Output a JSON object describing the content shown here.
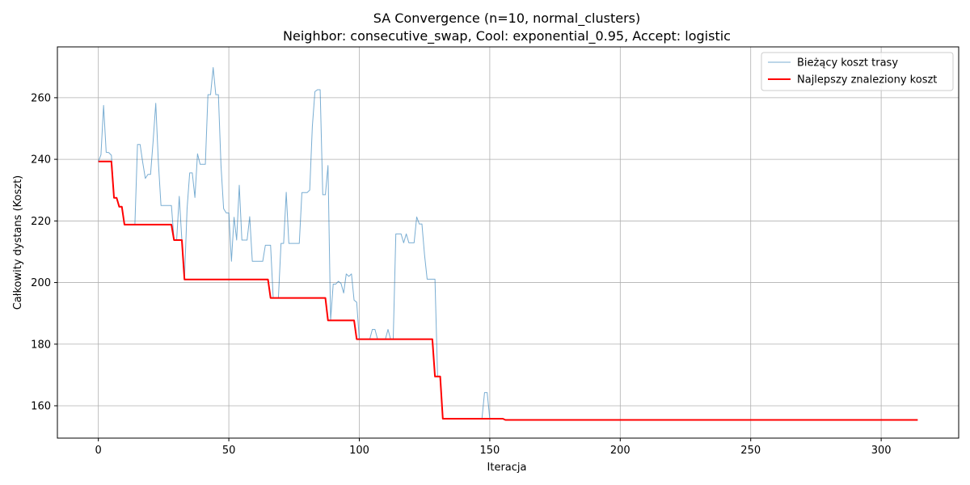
{
  "chart_data": {
    "type": "line",
    "title": "SA Convergence (n=10, normal_clusters)",
    "subtitle": "Neighbor: consecutive_swap, Cool: exponential_0.95, Accept: logistic",
    "xlabel": "Iteracja",
    "ylabel": "Całkowity dystans (Koszt)",
    "xlim": [
      -15.7,
      329.7
    ],
    "ylim": [
      149.5,
      276.5
    ],
    "xticks": [
      0,
      50,
      100,
      150,
      200,
      250,
      300
    ],
    "yticks": [
      160,
      180,
      200,
      220,
      240,
      260
    ],
    "grid": true,
    "legend_position": "top-right",
    "series": [
      {
        "name": "Bieżący koszt trasy",
        "color": "#1f77b4",
        "opacity": 0.6,
        "line_width": 1,
        "points": [
          [
            0,
            239.3
          ],
          [
            1,
            241.5
          ],
          [
            2,
            257.5
          ],
          [
            3,
            242.3
          ],
          [
            4,
            242.2
          ],
          [
            5,
            241.3
          ],
          [
            6,
            227.5
          ],
          [
            7,
            227.5
          ],
          [
            8,
            224.6
          ],
          [
            9,
            224.6
          ],
          [
            10,
            218.8
          ],
          [
            11,
            218.8
          ],
          [
            12,
            218.8
          ],
          [
            13,
            218.8
          ],
          [
            14,
            218.8
          ],
          [
            15,
            244.8
          ],
          [
            16,
            244.8
          ],
          [
            17,
            239.0
          ],
          [
            18,
            233.8
          ],
          [
            19,
            235.1
          ],
          [
            20,
            235.1
          ],
          [
            21,
            246.0
          ],
          [
            22,
            258.2
          ],
          [
            23,
            239.0
          ],
          [
            24,
            225.0
          ],
          [
            25,
            225.0
          ],
          [
            26,
            225.0
          ],
          [
            27,
            225.0
          ],
          [
            28,
            225.0
          ],
          [
            29,
            213.8
          ],
          [
            30,
            213.8
          ],
          [
            31,
            228.0
          ],
          [
            32,
            213.8
          ],
          [
            33,
            201.0
          ],
          [
            34,
            224.0
          ],
          [
            35,
            235.6
          ],
          [
            36,
            235.6
          ],
          [
            37,
            227.6
          ],
          [
            38,
            241.8
          ],
          [
            39,
            238.4
          ],
          [
            40,
            238.4
          ],
          [
            41,
            238.4
          ],
          [
            42,
            261.0
          ],
          [
            43,
            261.0
          ],
          [
            44,
            269.8
          ],
          [
            45,
            261.0
          ],
          [
            46,
            261.0
          ],
          [
            47,
            238.0
          ],
          [
            48,
            224.0
          ],
          [
            49,
            222.6
          ],
          [
            50,
            222.6
          ],
          [
            51,
            206.9
          ],
          [
            52,
            221.2
          ],
          [
            53,
            213.8
          ],
          [
            54,
            231.6
          ],
          [
            55,
            213.8
          ],
          [
            56,
            213.8
          ],
          [
            57,
            213.8
          ],
          [
            58,
            221.4
          ],
          [
            59,
            206.9
          ],
          [
            60,
            206.9
          ],
          [
            61,
            206.9
          ],
          [
            62,
            206.9
          ],
          [
            63,
            206.9
          ],
          [
            64,
            212.1
          ],
          [
            65,
            212.1
          ],
          [
            66,
            212.1
          ],
          [
            67,
            195.0
          ],
          [
            68,
            195.0
          ],
          [
            69,
            195.0
          ],
          [
            70,
            212.7
          ],
          [
            71,
            212.7
          ],
          [
            72,
            229.3
          ],
          [
            73,
            212.7
          ],
          [
            74,
            212.7
          ],
          [
            75,
            212.7
          ],
          [
            76,
            212.7
          ],
          [
            77,
            212.7
          ],
          [
            78,
            229.2
          ],
          [
            79,
            229.2
          ],
          [
            80,
            229.2
          ],
          [
            81,
            230.0
          ],
          [
            82,
            250.6
          ],
          [
            83,
            262.0
          ],
          [
            84,
            262.6
          ],
          [
            85,
            262.6
          ],
          [
            86,
            228.5
          ],
          [
            87,
            228.5
          ],
          [
            88,
            238.0
          ],
          [
            89,
            187.7
          ],
          [
            90,
            199.5
          ],
          [
            91,
            199.5
          ],
          [
            92,
            200.4
          ],
          [
            93,
            199.7
          ],
          [
            94,
            196.6
          ],
          [
            95,
            202.8
          ],
          [
            96,
            202.0
          ],
          [
            97,
            202.8
          ],
          [
            98,
            194.3
          ],
          [
            99,
            193.6
          ],
          [
            100,
            181.6
          ],
          [
            101,
            181.6
          ],
          [
            102,
            181.6
          ],
          [
            103,
            181.6
          ],
          [
            104,
            181.6
          ],
          [
            105,
            184.8
          ],
          [
            106,
            184.8
          ],
          [
            107,
            181.6
          ],
          [
            108,
            181.6
          ],
          [
            109,
            181.6
          ],
          [
            110,
            181.6
          ],
          [
            111,
            184.8
          ],
          [
            112,
            181.6
          ],
          [
            113,
            181.6
          ],
          [
            114,
            215.8
          ],
          [
            115,
            215.8
          ],
          [
            116,
            215.8
          ],
          [
            117,
            212.9
          ],
          [
            118,
            215.8
          ],
          [
            119,
            212.9
          ],
          [
            120,
            212.9
          ],
          [
            121,
            212.9
          ],
          [
            122,
            221.3
          ],
          [
            123,
            219.0
          ],
          [
            124,
            219.0
          ],
          [
            125,
            209.0
          ],
          [
            126,
            201.1
          ],
          [
            127,
            201.1
          ],
          [
            128,
            201.1
          ],
          [
            129,
            201.1
          ],
          [
            130,
            169.5
          ],
          [
            131,
            169.5
          ],
          [
            132,
            155.8
          ],
          [
            133,
            155.8
          ],
          [
            134,
            155.8
          ],
          [
            135,
            155.8
          ],
          [
            140,
            155.8
          ],
          [
            145,
            155.8
          ],
          [
            146,
            155.8
          ],
          [
            147,
            155.8
          ],
          [
            148,
            164.3
          ],
          [
            149,
            164.3
          ],
          [
            150,
            155.8
          ],
          [
            151,
            155.8
          ],
          [
            152,
            155.8
          ],
          [
            153,
            155.8
          ],
          [
            154,
            155.8
          ],
          [
            155,
            155.8
          ],
          [
            156,
            155.4
          ],
          [
            200,
            155.4
          ],
          [
            250,
            155.4
          ],
          [
            300,
            155.4
          ],
          [
            314,
            155.4
          ]
        ]
      },
      {
        "name": "Najlepszy znaleziony koszt",
        "color": "#ff0000",
        "opacity": 1,
        "line_width": 2,
        "points": [
          [
            0,
            239.3
          ],
          [
            5,
            239.3
          ],
          [
            6,
            227.5
          ],
          [
            7,
            227.5
          ],
          [
            8,
            224.6
          ],
          [
            9,
            224.6
          ],
          [
            10,
            218.8
          ],
          [
            28,
            218.8
          ],
          [
            29,
            213.8
          ],
          [
            32,
            213.8
          ],
          [
            33,
            201.0
          ],
          [
            65,
            201.0
          ],
          [
            66,
            195.0
          ],
          [
            87,
            195.0
          ],
          [
            88,
            187.7
          ],
          [
            98,
            187.7
          ],
          [
            99,
            181.6
          ],
          [
            128,
            181.6
          ],
          [
            129,
            169.5
          ],
          [
            131,
            169.5
          ],
          [
            132,
            155.8
          ],
          [
            155,
            155.8
          ],
          [
            156,
            155.4
          ],
          [
            314,
            155.4
          ]
        ]
      }
    ]
  }
}
